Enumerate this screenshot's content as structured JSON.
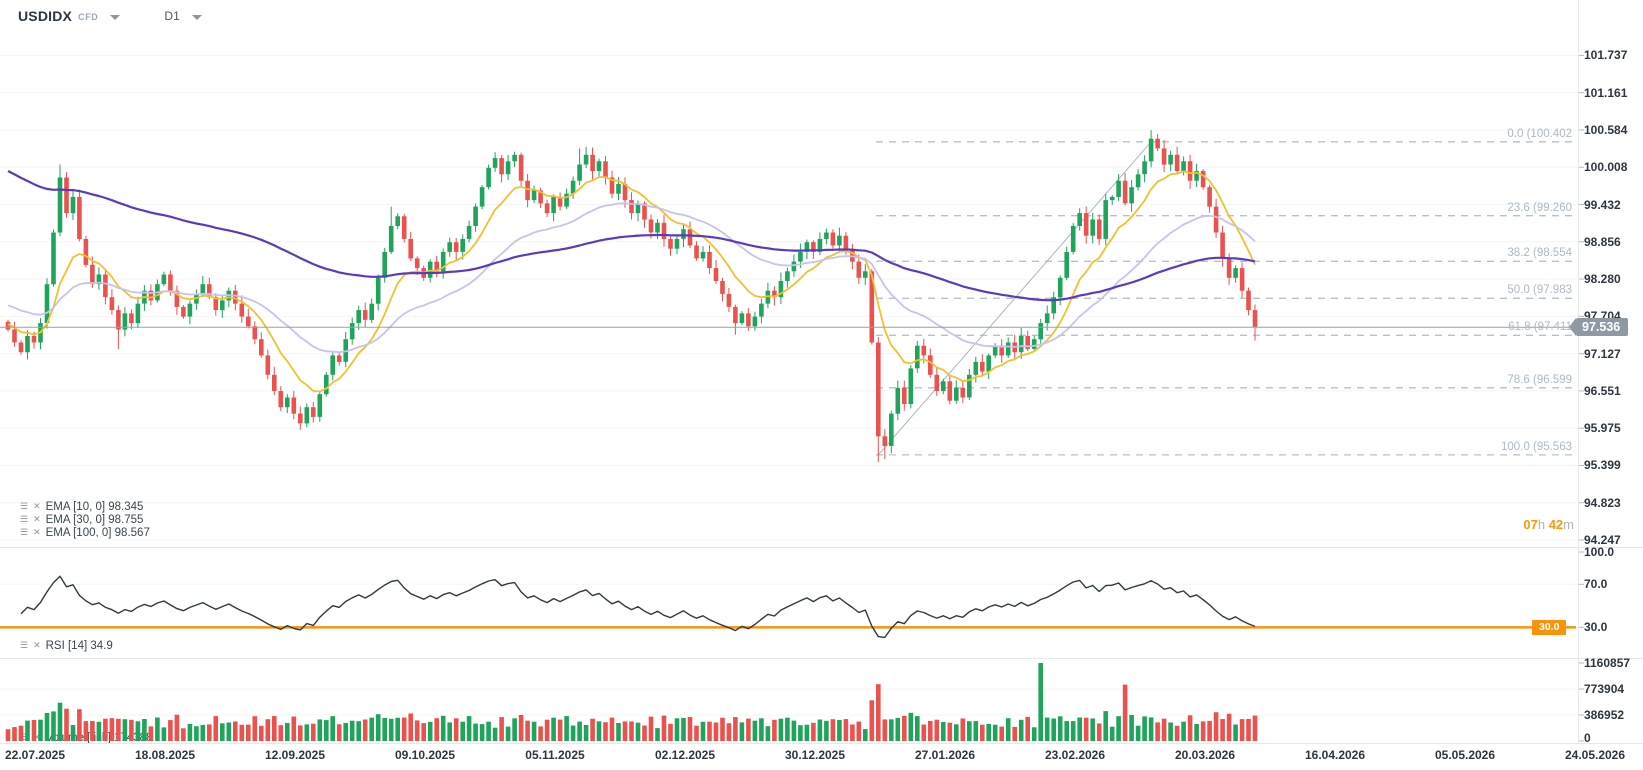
{
  "header": {
    "symbol": "USDIDX",
    "market": "CFD",
    "timeframe": "D1"
  },
  "countdown": {
    "hours": "07",
    "hours_unit": "h",
    "minutes": "42",
    "minutes_unit": "m"
  },
  "current_price_badge": "97.536",
  "rsi_oversold_badge": "30.0",
  "legends": {
    "ema_rows": [
      "EMA [10, 0] 98.345",
      "EMA [30, 0] 98.755",
      "EMA [100, 0] 98.567"
    ],
    "rsi_row": "RSI [14] 34.9",
    "volume_row": "Volume [tick] 174388",
    "settings_icon": "☰",
    "remove_icon": "✕"
  },
  "colors": {
    "candle_up": "#1fa45b",
    "candle_down": "#e9524e",
    "ema10": "#f2c12e",
    "ema30": "#c9c2ea",
    "ema100": "#5b3bbd",
    "rsi_line": "#2e3a42",
    "rsi_level": "#f8930a",
    "fib": "#b3c2cd",
    "trendline": "#aab6bf",
    "price_line": "#8fa3b0",
    "grid": "#f3f5f6",
    "separator": "#e5e9ec",
    "tick": "#b0bec5",
    "accent_orange": "#ff9800",
    "badge_gray": "#8d9aa6"
  },
  "chart_data": {
    "type": "candlestick",
    "title": "USDIDX CFD D1",
    "ylabel": "price",
    "ylim": [
      94.247,
      101.737
    ],
    "grid": true,
    "price_ticks": [
      101.737,
      101.161,
      100.584,
      100.008,
      99.432,
      98.856,
      98.28,
      97.704,
      97.127,
      96.551,
      95.975,
      95.399,
      94.823,
      94.247
    ],
    "x_dates": [
      "22.07.2025",
      "18.08.2025",
      "12.09.2025",
      "09.10.2025",
      "05.11.2025",
      "02.12.2025",
      "30.12.2025",
      "27.01.2026",
      "23.02.2026",
      "20.03.2026",
      "16.04.2026",
      "05.05.2026",
      "24.05.2026"
    ],
    "current_price": 97.536,
    "first_open": 97.62,
    "closes": [
      97.5,
      97.3,
      97.15,
      97.4,
      97.3,
      97.6,
      98.2,
      99.0,
      99.85,
      99.3,
      99.55,
      98.9,
      98.5,
      98.2,
      98.35,
      98.0,
      97.8,
      97.5,
      97.75,
      97.6,
      97.9,
      98.1,
      97.95,
      98.2,
      98.35,
      98.1,
      97.85,
      97.7,
      97.9,
      98.05,
      98.2,
      98.0,
      97.8,
      97.95,
      98.1,
      97.9,
      97.7,
      97.55,
      97.35,
      97.1,
      96.8,
      96.55,
      96.3,
      96.45,
      96.2,
      96.05,
      96.3,
      96.15,
      96.5,
      96.8,
      97.1,
      97.0,
      97.35,
      97.6,
      97.8,
      97.65,
      97.9,
      98.3,
      98.7,
      99.1,
      99.25,
      98.9,
      98.6,
      98.45,
      98.3,
      98.55,
      98.4,
      98.7,
      98.85,
      98.7,
      98.9,
      99.1,
      99.4,
      99.7,
      100.0,
      100.15,
      99.9,
      100.1,
      100.2,
      99.8,
      99.5,
      99.65,
      99.45,
      99.3,
      99.55,
      99.4,
      99.6,
      99.8,
      100.05,
      100.2,
      99.95,
      100.1,
      99.85,
      99.6,
      99.75,
      99.5,
      99.3,
      99.45,
      99.2,
      99.0,
      99.15,
      98.9,
      98.75,
      98.9,
      99.05,
      98.8,
      98.6,
      98.7,
      98.45,
      98.25,
      98.05,
      97.85,
      97.6,
      97.75,
      97.55,
      97.7,
      97.9,
      98.1,
      98.0,
      98.25,
      98.4,
      98.55,
      98.7,
      98.85,
      98.7,
      98.9,
      99.0,
      98.8,
      98.95,
      98.75,
      98.55,
      98.3,
      98.4,
      97.3,
      95.85,
      95.7,
      96.2,
      96.6,
      96.35,
      96.9,
      97.25,
      97.1,
      96.8,
      96.55,
      96.7,
      96.4,
      96.6,
      96.45,
      96.8,
      97.0,
      96.85,
      97.1,
      97.25,
      97.1,
      97.3,
      97.15,
      97.4,
      97.2,
      97.35,
      97.6,
      97.75,
      98.0,
      98.3,
      98.7,
      99.1,
      99.3,
      98.95,
      99.2,
      98.9,
      99.5,
      99.55,
      99.8,
      99.45,
      99.7,
      99.9,
      100.1,
      100.45,
      100.3,
      100.05,
      100.2,
      99.95,
      100.1,
      99.8,
      99.95,
      99.7,
      99.4,
      99.0,
      98.6,
      98.3,
      98.45,
      98.1,
      97.8,
      97.54
    ],
    "high_overrides": {
      "8": 100.05,
      "59": 99.4,
      "88": 100.3,
      "176": 100.58
    },
    "low_overrides": {
      "17": 97.2,
      "45": 95.95,
      "112": 97.42,
      "134": 95.45,
      "135": 95.5,
      "192": 97.33
    },
    "volume_overrides": {
      "159": 1160857,
      "172": 840000
    },
    "indicators": {
      "ema": [
        {
          "period": 10,
          "seed": 97.6,
          "color_key": "ema10",
          "width": 1.8
        },
        {
          "period": 30,
          "seed": 97.9,
          "color_key": "ema30",
          "width": 1.8
        },
        {
          "period": 100,
          "seed": 100.0,
          "color_key": "ema100",
          "width": 2.2
        }
      ],
      "rsi": {
        "period": 14,
        "current": 34.9,
        "oversold_level": 30,
        "ticks": [
          100.0,
          70.0,
          30.0
        ]
      },
      "volume_ticks": [
        1160857,
        773904,
        386952,
        0
      ]
    },
    "fib": {
      "levels": [
        {
          "label": "0.0 (100.402",
          "price": 100.402
        },
        {
          "label": "23.6 (99.260",
          "price": 99.26
        },
        {
          "label": "38.2 (98.554",
          "price": 98.554
        },
        {
          "label": "50.0 (97.983",
          "price": 97.983
        },
        {
          "label": "61.8 (97.411",
          "price": 97.411
        },
        {
          "label": "78.6 (96.599",
          "price": 96.599
        },
        {
          "label": "100.0 (95.563",
          "price": 95.563
        }
      ],
      "anchor_low_index": 134,
      "anchor_high_index": 176,
      "anchor_low_price": 95.563,
      "anchor_high_price": 100.402
    }
  }
}
